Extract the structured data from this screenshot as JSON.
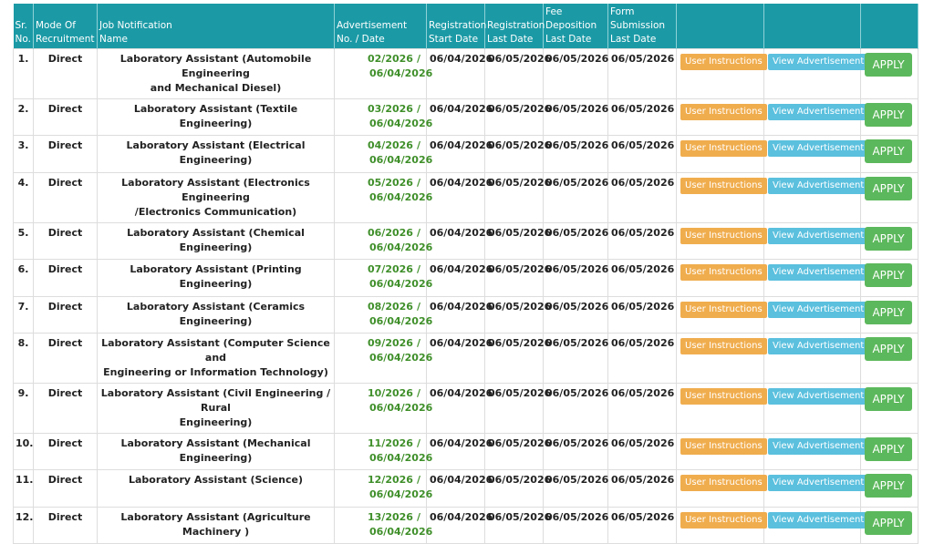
{
  "headers": {
    "sr": [
      "Sr.",
      "No."
    ],
    "mode": [
      "Mode Of",
      "Recruitment"
    ],
    "job": [
      "Job Notification",
      "Name"
    ],
    "adv": [
      "Advertisement",
      "No. / Date"
    ],
    "reg_start": [
      "Registration",
      "Start Date"
    ],
    "reg_last": [
      "Registration",
      "Last Date"
    ],
    "fee": [
      "Fee",
      "Deposition",
      "Last Date"
    ],
    "form": [
      "Form",
      "Submission",
      "Last Date"
    ]
  },
  "buttons": {
    "user_instructions": "User Instructions",
    "view_advertisement": "View Advertisement",
    "apply": "APPLY"
  },
  "colors": {
    "header_bg": "#1b9aa6",
    "user_instructions": "#f0ad4e",
    "view_advertisement": "#5bc0de",
    "apply": "#5cb85c",
    "adv_text": "#3f8f2a"
  },
  "rows": [
    {
      "sr": "1.",
      "mode": "Direct",
      "name_l1": "Laboratory Assistant (Automobile Engineering",
      "name_l2": "and Mechanical Diesel)",
      "adv_no": "02/2026",
      "adv_sep": "/",
      "adv_date": "06/04/2026",
      "reg_start": "06/04/2026",
      "reg_last": "06/05/2026",
      "fee_last": "06/05/2026",
      "form_last": "06/05/2026"
    },
    {
      "sr": "2.",
      "mode": "Direct",
      "name_l1": "Laboratory Assistant (Textile Engineering)",
      "name_l2": "",
      "adv_no": "03/2026",
      "adv_sep": "/",
      "adv_date": "06/04/2026",
      "reg_start": "06/04/2026",
      "reg_last": "06/05/2026",
      "fee_last": "06/05/2026",
      "form_last": "06/05/2026"
    },
    {
      "sr": "3.",
      "mode": "Direct",
      "name_l1": "Laboratory Assistant (Electrical Engineering)",
      "name_l2": "",
      "adv_no": "04/2026",
      "adv_sep": "/",
      "adv_date": "06/04/2026",
      "reg_start": "06/04/2026",
      "reg_last": "06/05/2026",
      "fee_last": "06/05/2026",
      "form_last": "06/05/2026"
    },
    {
      "sr": "4.",
      "mode": "Direct",
      "name_l1": "Laboratory Assistant (Electronics Engineering",
      "name_l2": "/Electronics Communication)",
      "adv_no": "05/2026",
      "adv_sep": "/",
      "adv_date": "06/04/2026",
      "reg_start": "06/04/2026",
      "reg_last": "06/05/2026",
      "fee_last": "06/05/2026",
      "form_last": "06/05/2026"
    },
    {
      "sr": "5.",
      "mode": "Direct",
      "name_l1": "Laboratory Assistant (Chemical Engineering)",
      "name_l2": "",
      "adv_no": "06/2026",
      "adv_sep": "/",
      "adv_date": "06/04/2026",
      "reg_start": "06/04/2026",
      "reg_last": "06/05/2026",
      "fee_last": "06/05/2026",
      "form_last": "06/05/2026"
    },
    {
      "sr": "6.",
      "mode": "Direct",
      "name_l1": "Laboratory Assistant (Printing Engineering)",
      "name_l2": "",
      "adv_no": "07/2026",
      "adv_sep": "/",
      "adv_date": "06/04/2026",
      "reg_start": "06/04/2026",
      "reg_last": "06/05/2026",
      "fee_last": "06/05/2026",
      "form_last": "06/05/2026"
    },
    {
      "sr": "7.",
      "mode": "Direct",
      "name_l1": "Laboratory Assistant (Ceramics Engineering)",
      "name_l2": "",
      "adv_no": "08/2026",
      "adv_sep": "/",
      "adv_date": "06/04/2026",
      "reg_start": "06/04/2026",
      "reg_last": "06/05/2026",
      "fee_last": "06/05/2026",
      "form_last": "06/05/2026"
    },
    {
      "sr": "8.",
      "mode": "Direct",
      "name_l1": "Laboratory Assistant (Computer Science and",
      "name_l2": "Engineering or Information Technology)",
      "adv_no": "09/2026",
      "adv_sep": "/",
      "adv_date": "06/04/2026",
      "reg_start": "06/04/2026",
      "reg_last": "06/05/2026",
      "fee_last": "06/05/2026",
      "form_last": "06/05/2026"
    },
    {
      "sr": "9.",
      "mode": "Direct",
      "name_l1": "Laboratory Assistant (Civil Engineering / Rural",
      "name_l2": "Engineering)",
      "adv_no": "10/2026",
      "adv_sep": "/",
      "adv_date": "06/04/2026",
      "reg_start": "06/04/2026",
      "reg_last": "06/05/2026",
      "fee_last": "06/05/2026",
      "form_last": "06/05/2026"
    },
    {
      "sr": "10.",
      "mode": "Direct",
      "name_l1": "Laboratory Assistant (Mechanical Engineering)",
      "name_l2": "",
      "adv_no": "11/2026",
      "adv_sep": "/",
      "adv_date": "06/04/2026",
      "reg_start": "06/04/2026",
      "reg_last": "06/05/2026",
      "fee_last": "06/05/2026",
      "form_last": "06/05/2026"
    },
    {
      "sr": "11.",
      "mode": "Direct",
      "name_l1": "Laboratory Assistant (Science)",
      "name_l2": "",
      "adv_no": "12/2026",
      "adv_sep": "/",
      "adv_date": "06/04/2026",
      "reg_start": "06/04/2026",
      "reg_last": "06/05/2026",
      "fee_last": "06/05/2026",
      "form_last": "06/05/2026"
    },
    {
      "sr": "12.",
      "mode": "Direct",
      "name_l1": "Laboratory Assistant (Agriculture Machinery )",
      "name_l2": "",
      "adv_no": "13/2026",
      "adv_sep": "/",
      "adv_date": "06/04/2026",
      "reg_start": "06/04/2026",
      "reg_last": "06/05/2026",
      "fee_last": "06/05/2026",
      "form_last": "06/05/2026"
    }
  ]
}
